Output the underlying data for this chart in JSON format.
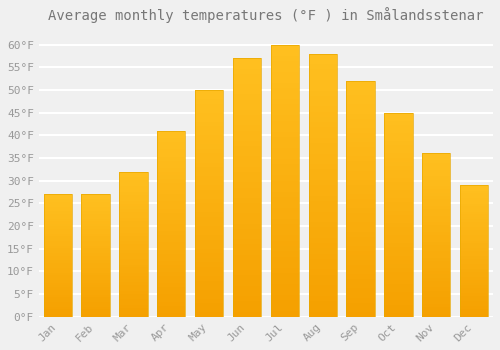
{
  "title": "Average monthly temperatures (°F ) in Smålandsstenar",
  "months": [
    "Jan",
    "Feb",
    "Mar",
    "Apr",
    "May",
    "Jun",
    "Jul",
    "Aug",
    "Sep",
    "Oct",
    "Nov",
    "Dec"
  ],
  "values": [
    27,
    27,
    32,
    41,
    50,
    57,
    60,
    58,
    52,
    45,
    36,
    29
  ],
  "bar_color_top": "#FFC020",
  "bar_color_bottom": "#F5A000",
  "bar_edge_color": "#E8A800",
  "background_color": "#F0F0F0",
  "grid_color": "#FFFFFF",
  "text_color": "#999999",
  "title_color": "#777777",
  "ylim": [
    0,
    63
  ],
  "yticks": [
    0,
    5,
    10,
    15,
    20,
    25,
    30,
    35,
    40,
    45,
    50,
    55,
    60
  ],
  "ylabel_suffix": "°F",
  "title_fontsize": 10,
  "tick_fontsize": 8,
  "font_family": "monospace"
}
